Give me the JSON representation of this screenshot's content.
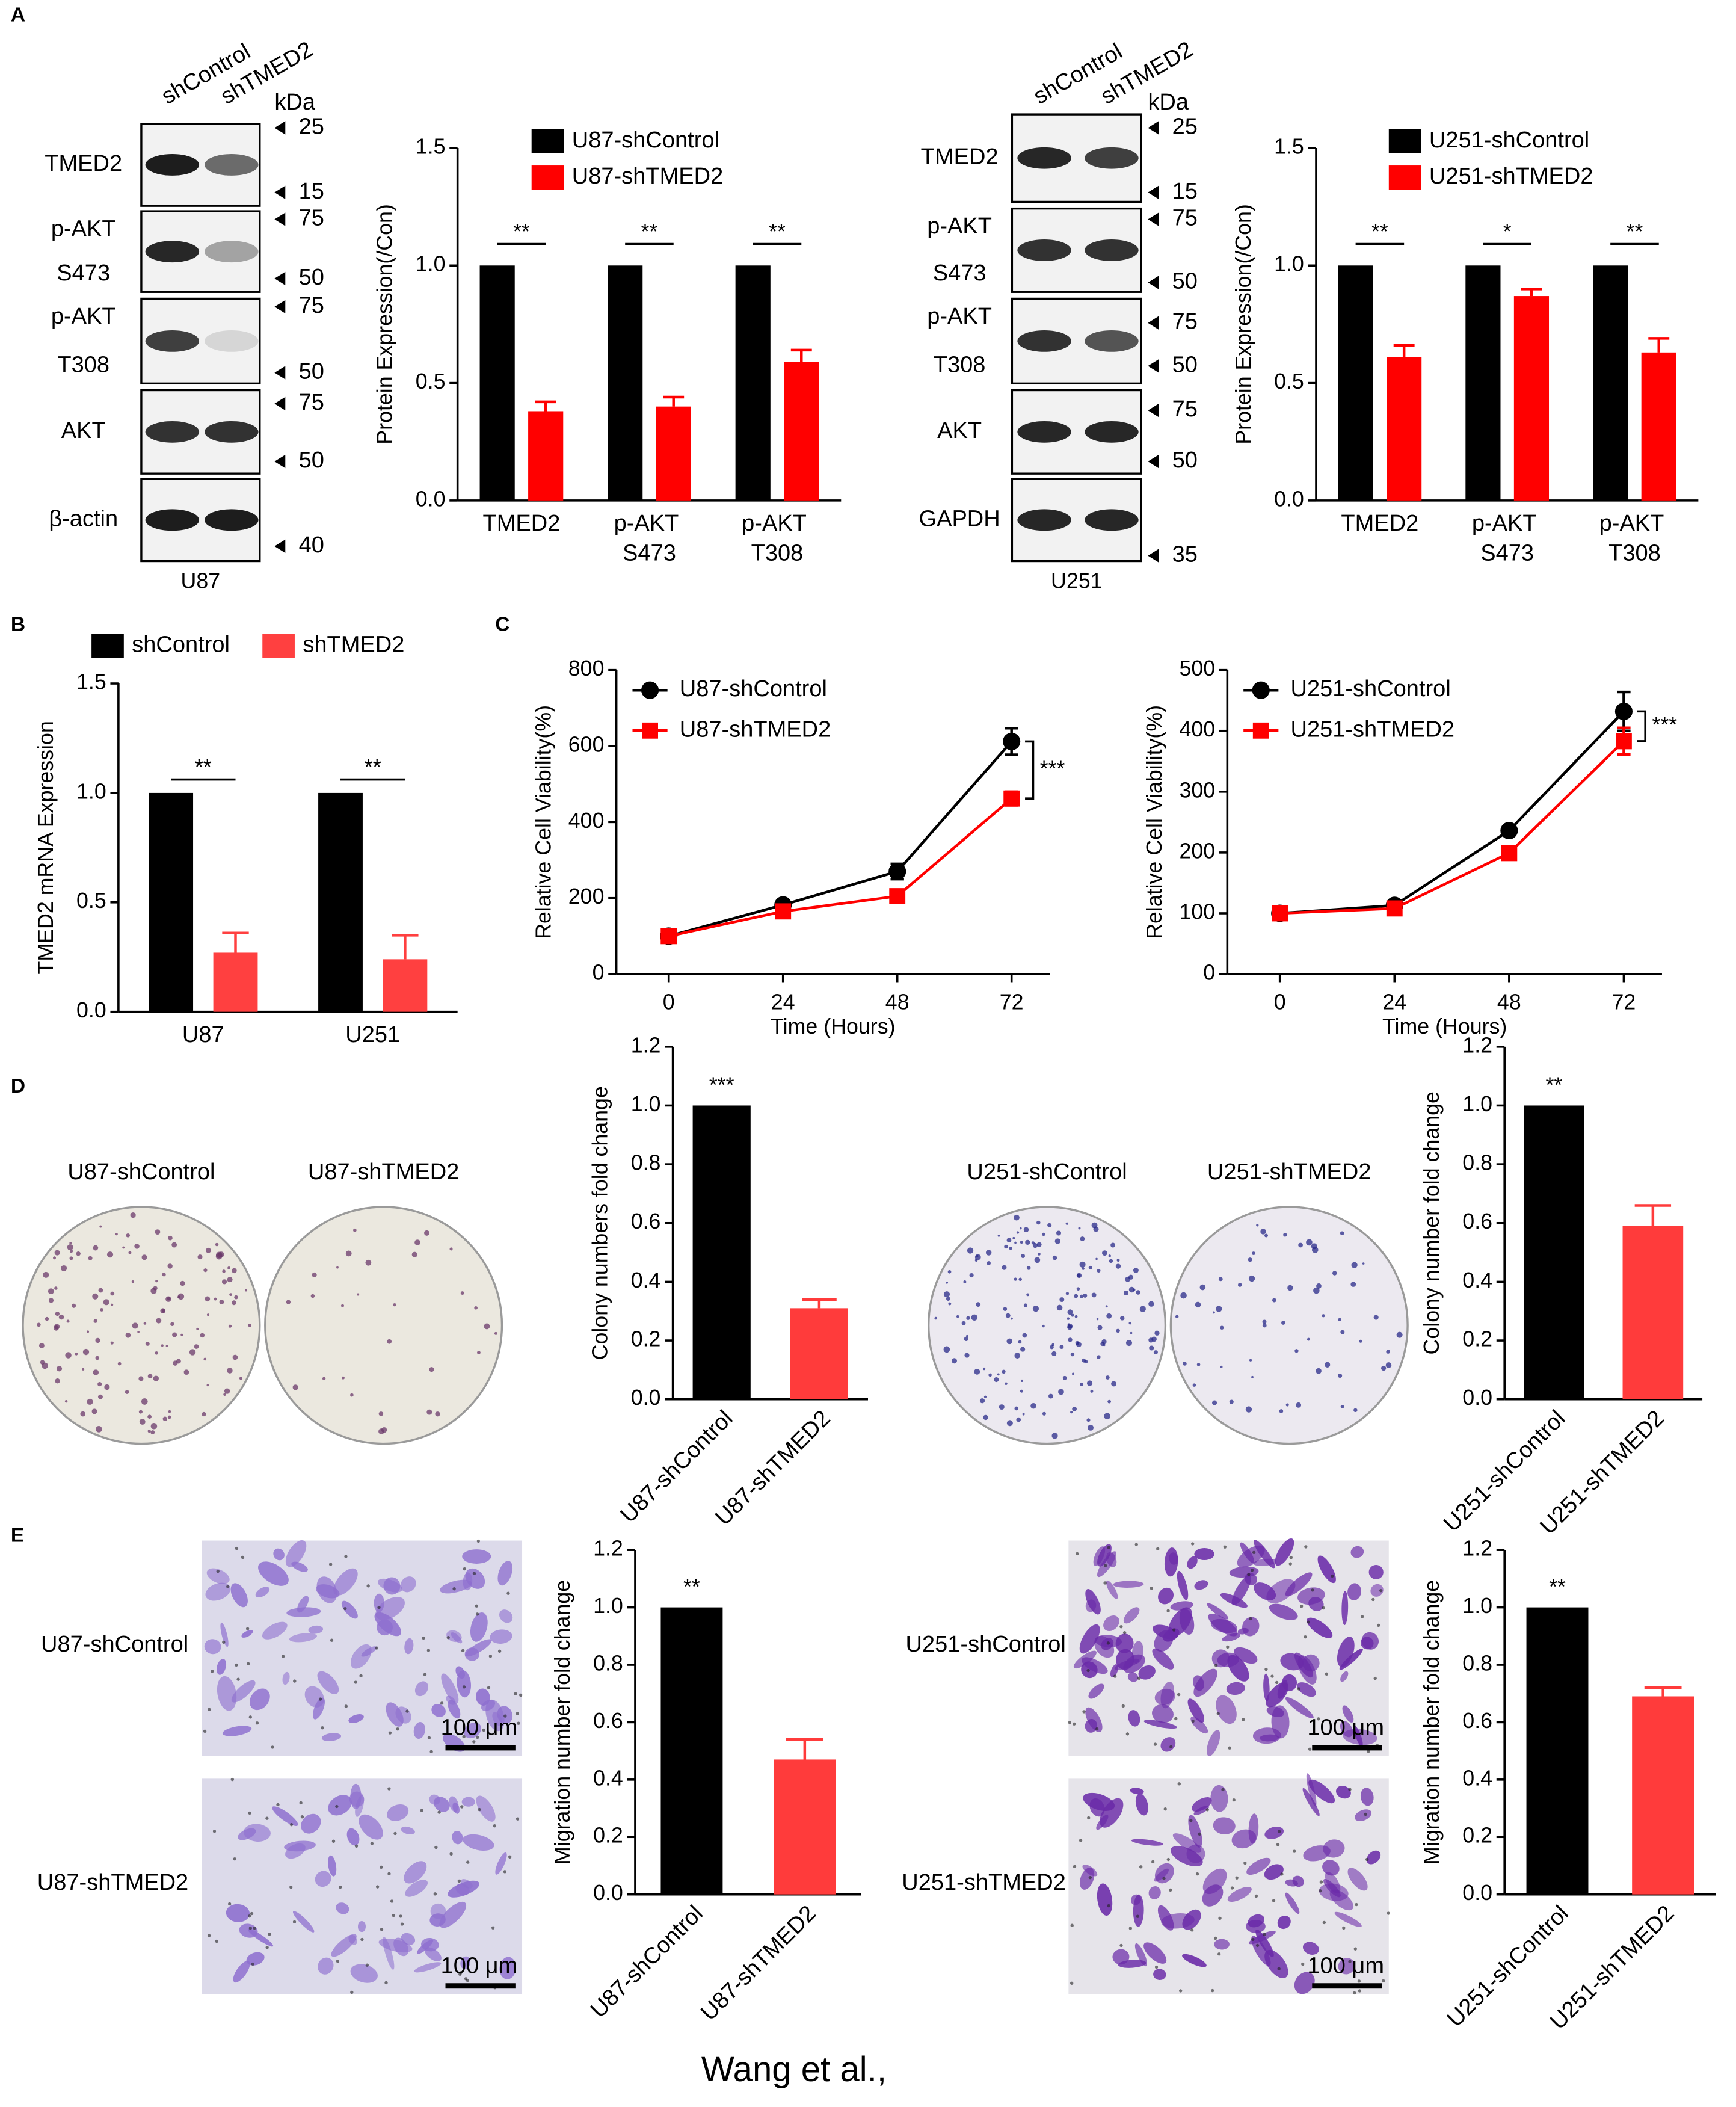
{
  "chart_data": [
    {
      "type": "bar",
      "categories": [
        "TMED2",
        "p-AKT\nS473",
        "p-AKT\nT308"
      ],
      "y_label": "Protein Expression(/Con)",
      "ylim": [
        0,
        1.5
      ],
      "yticks": [
        {
          "value": 0,
          "label": "0.0"
        },
        0.5,
        {
          "value": 1,
          "label": "1.0"
        },
        1.5
      ],
      "legend": "top-right",
      "series": [
        {
          "name": "U87-shControl",
          "color": "#000000",
          "values": [
            1,
            1,
            1
          ]
        },
        {
          "name": "U87-shTMED2",
          "color": "#ff0000",
          "values": [
            0.38,
            0.4,
            0.59
          ],
          "errors": [
            0.04,
            0.04,
            0.05
          ]
        }
      ],
      "significance": [
        "**",
        "**",
        "**"
      ]
    },
    {
      "type": "bar",
      "categories": [
        "TMED2",
        "p-AKT\nS473",
        "p-AKT\nT308"
      ],
      "y_label": "Protein Expression(/Con)",
      "ylim": [
        0,
        1.5
      ],
      "yticks": [
        {
          "value": 0,
          "label": "0.0"
        },
        0.5,
        {
          "value": 1,
          "label": "1.0"
        },
        1.5
      ],
      "legend": "top-right",
      "series": [
        {
          "name": "U251-shControl",
          "color": "#000000",
          "values": [
            1,
            1,
            1
          ]
        },
        {
          "name": "U251-shTMED2",
          "color": "#ff0000",
          "values": [
            0.61,
            0.87,
            0.63
          ],
          "errors": [
            0.05,
            0.03,
            0.06
          ]
        }
      ],
      "significance": [
        "**",
        "*",
        "**"
      ]
    },
    {
      "type": "bar",
      "categories": [
        "U87",
        "U251"
      ],
      "y_label": "TMED2 mRNA Expression",
      "ylim": [
        0,
        1.5
      ],
      "yticks": [
        {
          "value": 0,
          "label": "0.0"
        },
        0.5,
        {
          "value": 1,
          "label": "1.0"
        },
        1.5
      ],
      "legend": "top",
      "series": [
        {
          "name": "shControl",
          "color": "#000000",
          "values": [
            1,
            1
          ]
        },
        {
          "name": "shTMED2",
          "color": "#ff4040",
          "values": [
            0.27,
            0.24
          ],
          "errors": [
            0.09,
            0.11
          ]
        }
      ],
      "significance": [
        "**",
        "**"
      ]
    },
    {
      "type": "line",
      "x": [
        0,
        24,
        48,
        72
      ],
      "xlim": [
        -11,
        80
      ],
      "xticks": [
        0,
        24,
        48,
        72
      ],
      "x_label": "Time (Hours)",
      "y_label": "Relative Cell Viability(%)",
      "ylim": [
        0,
        800
      ],
      "yticks": [
        0,
        200,
        400,
        600,
        800
      ],
      "legend": "top-left",
      "series": [
        {
          "name": "U87-shControl",
          "color": "#000000",
          "marker": "circle",
          "values": [
            100,
            182,
            270,
            612
          ],
          "errors": [
            5,
            8,
            20,
            35
          ]
        },
        {
          "name": "U87-shTMED2",
          "color": "#ff0000",
          "marker": "square",
          "values": [
            100,
            165,
            205,
            462
          ],
          "errors": [
            5,
            5,
            8,
            18
          ]
        }
      ],
      "significance": "***"
    },
    {
      "type": "line",
      "x": [
        0,
        24,
        48,
        72
      ],
      "xlim": [
        -11,
        80
      ],
      "xticks": [
        0,
        24,
        48,
        72
      ],
      "x_label": "Time (Hours)",
      "y_label": "Relative Cell Viability(%)",
      "ylim": [
        0,
        500
      ],
      "yticks": [
        0,
        100,
        200,
        300,
        400,
        500
      ],
      "legend": "top-left",
      "series": [
        {
          "name": "U251-shControl",
          "color": "#000000",
          "marker": "circle",
          "values": [
            100,
            113,
            236,
            432
          ],
          "errors": [
            5,
            5,
            5,
            32
          ]
        },
        {
          "name": "U251-shTMED2",
          "color": "#ff0000",
          "marker": "square",
          "values": [
            100,
            108,
            199,
            383
          ],
          "errors": [
            4,
            4,
            5,
            22
          ]
        }
      ],
      "significance": "***"
    },
    {
      "type": "bar",
      "categories": [
        "U87-shControl",
        "U87-shTMED2"
      ],
      "values": [
        1,
        0.31
      ],
      "errors": [
        null,
        0.03
      ],
      "colors": [
        "#000000",
        "#ff3b3b"
      ],
      "y_label": "Colony numbers fold change",
      "xtick_rotation": -45,
      "ylim": [
        0,
        1.2
      ],
      "yticks": [
        {
          "value": 0,
          "label": "0.0"
        },
        0.2,
        0.4,
        0.6,
        0.8,
        {
          "value": 1,
          "label": "1.0"
        },
        1.2
      ],
      "significance": [
        "***"
      ]
    },
    {
      "type": "bar",
      "categories": [
        "U251-shControl",
        "U251-shTMED2"
      ],
      "values": [
        1,
        0.59
      ],
      "errors": [
        null,
        0.07
      ],
      "colors": [
        "#000000",
        "#ff3b3b"
      ],
      "y_label": "Colony number fold change",
      "xtick_rotation": -45,
      "ylim": [
        0,
        1.2
      ],
      "yticks": [
        {
          "value": 0,
          "label": "0.0"
        },
        0.2,
        0.4,
        0.6,
        0.8,
        {
          "value": 1,
          "label": "1.0"
        },
        1.2
      ],
      "significance": [
        "**"
      ]
    },
    {
      "type": "bar",
      "categories": [
        "U87-shControl",
        "U87-shTMED2"
      ],
      "values": [
        1,
        0.47
      ],
      "errors": [
        null,
        0.07
      ],
      "colors": [
        "#000000",
        "#ff3b3b"
      ],
      "y_label": "Migration number fold change",
      "xtick_rotation": -45,
      "ylim": [
        0,
        1.2
      ],
      "yticks": [
        {
          "value": 0,
          "label": "0.0"
        },
        0.2,
        0.4,
        0.6,
        0.8,
        {
          "value": 1,
          "label": "1.0"
        },
        1.2
      ],
      "significance": [
        "**"
      ]
    },
    {
      "type": "bar",
      "categories": [
        "U251-shControl",
        "U251-shTMED2"
      ],
      "values": [
        1,
        0.69
      ],
      "errors": [
        null,
        0.03
      ],
      "colors": [
        "#000000",
        "#ff3b3b"
      ],
      "y_label": "Migration number fold change",
      "xtick_rotation": -45,
      "ylim": [
        0,
        1.2
      ],
      "yticks": [
        {
          "value": 0,
          "label": "0.0"
        },
        0.2,
        0.4,
        0.6,
        0.8,
        {
          "value": 1,
          "label": "1.0"
        },
        1.2
      ],
      "significance": [
        "**"
      ]
    }
  ],
  "figure": {
    "panel_labels": [
      "A",
      "B",
      "C",
      "D",
      "E"
    ],
    "blots": [
      {
        "lanes": [
          "shControl",
          "shTMED2"
        ],
        "unit": "kDa",
        "cell_line": "U87",
        "rows": [
          [
            "TMED2"
          ],
          [
            "p-AKT",
            "S473"
          ],
          [
            "p-AKT",
            "T308"
          ],
          [
            "AKT"
          ],
          [
            "β-actin"
          ]
        ],
        "markers": [
          25,
          15,
          75,
          50,
          75,
          50,
          75,
          50,
          40
        ]
      },
      {
        "lanes": [
          "shControl",
          "shTMED2"
        ],
        "unit": "kDa",
        "cell_line": "U251",
        "rows": [
          [
            "TMED2"
          ],
          [
            "p-AKT",
            "S473"
          ],
          [
            "p-AKT",
            "T308"
          ],
          [
            "AKT"
          ],
          [
            "GAPDH"
          ]
        ],
        "markers": [
          25,
          15,
          75,
          50,
          75,
          50,
          75,
          50,
          35
        ]
      }
    ],
    "dishes": [
      {
        "labels": [
          "U87-shControl",
          "U87-shTMED2"
        ]
      },
      {
        "labels": [
          "U251-shControl",
          "U251-shTMED2"
        ]
      }
    ],
    "micrographs": [
      {
        "images": [
          {
            "label": "U87-shControl",
            "scale": "100 μm"
          },
          {
            "label": "U87-shTMED2",
            "scale": "100 μm"
          }
        ]
      },
      {
        "images": [
          {
            "label": "U251-shControl",
            "scale": "100 μm"
          },
          {
            "label": "U251-shTMED2",
            "scale": "100 μm"
          }
        ]
      }
    ],
    "credit": "Wang et al.,"
  }
}
